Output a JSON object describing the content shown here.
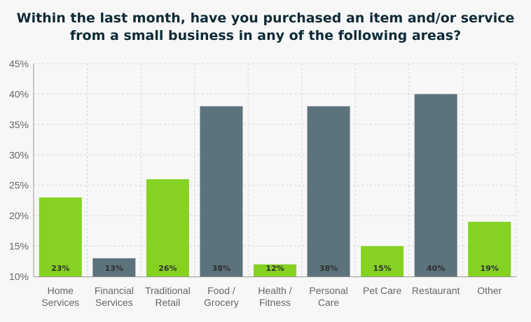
{
  "chart_data": {
    "type": "bar",
    "title": [
      "Within the last month, have you purchased an item and/or service",
      "from a small business in any of the following areas?"
    ],
    "categories": [
      [
        "Home",
        "Services"
      ],
      [
        "Financial",
        "Services"
      ],
      [
        "Traditional",
        "Retail"
      ],
      [
        "Food /",
        "Grocery"
      ],
      [
        "Health /",
        "Fitness"
      ],
      [
        "Personal",
        "Care"
      ],
      [
        "Pet Care"
      ],
      [
        "Restaurant"
      ],
      [
        "Other"
      ]
    ],
    "values": [
      23,
      13,
      26,
      38,
      12,
      38,
      15,
      40,
      19
    ],
    "data_labels": [
      "23%",
      "13%",
      "26%",
      "38%",
      "12%",
      "38%",
      "15%",
      "40%",
      "19%"
    ],
    "yticks": [
      "10%",
      "15%",
      "20%",
      "25%",
      "30%",
      "35%",
      "40%",
      "45%"
    ],
    "ylim": [
      10,
      45
    ],
    "ytick_step": 5,
    "grid": true,
    "xlabel": "",
    "ylabel": "",
    "bar_colors": [
      "#85d223",
      "#5d737c",
      "#85d223",
      "#5d737c",
      "#85d223",
      "#5d737c",
      "#85d223",
      "#5d737c",
      "#85d223"
    ],
    "grid_color": "#d4d4d4",
    "axis_color": "#999999"
  }
}
